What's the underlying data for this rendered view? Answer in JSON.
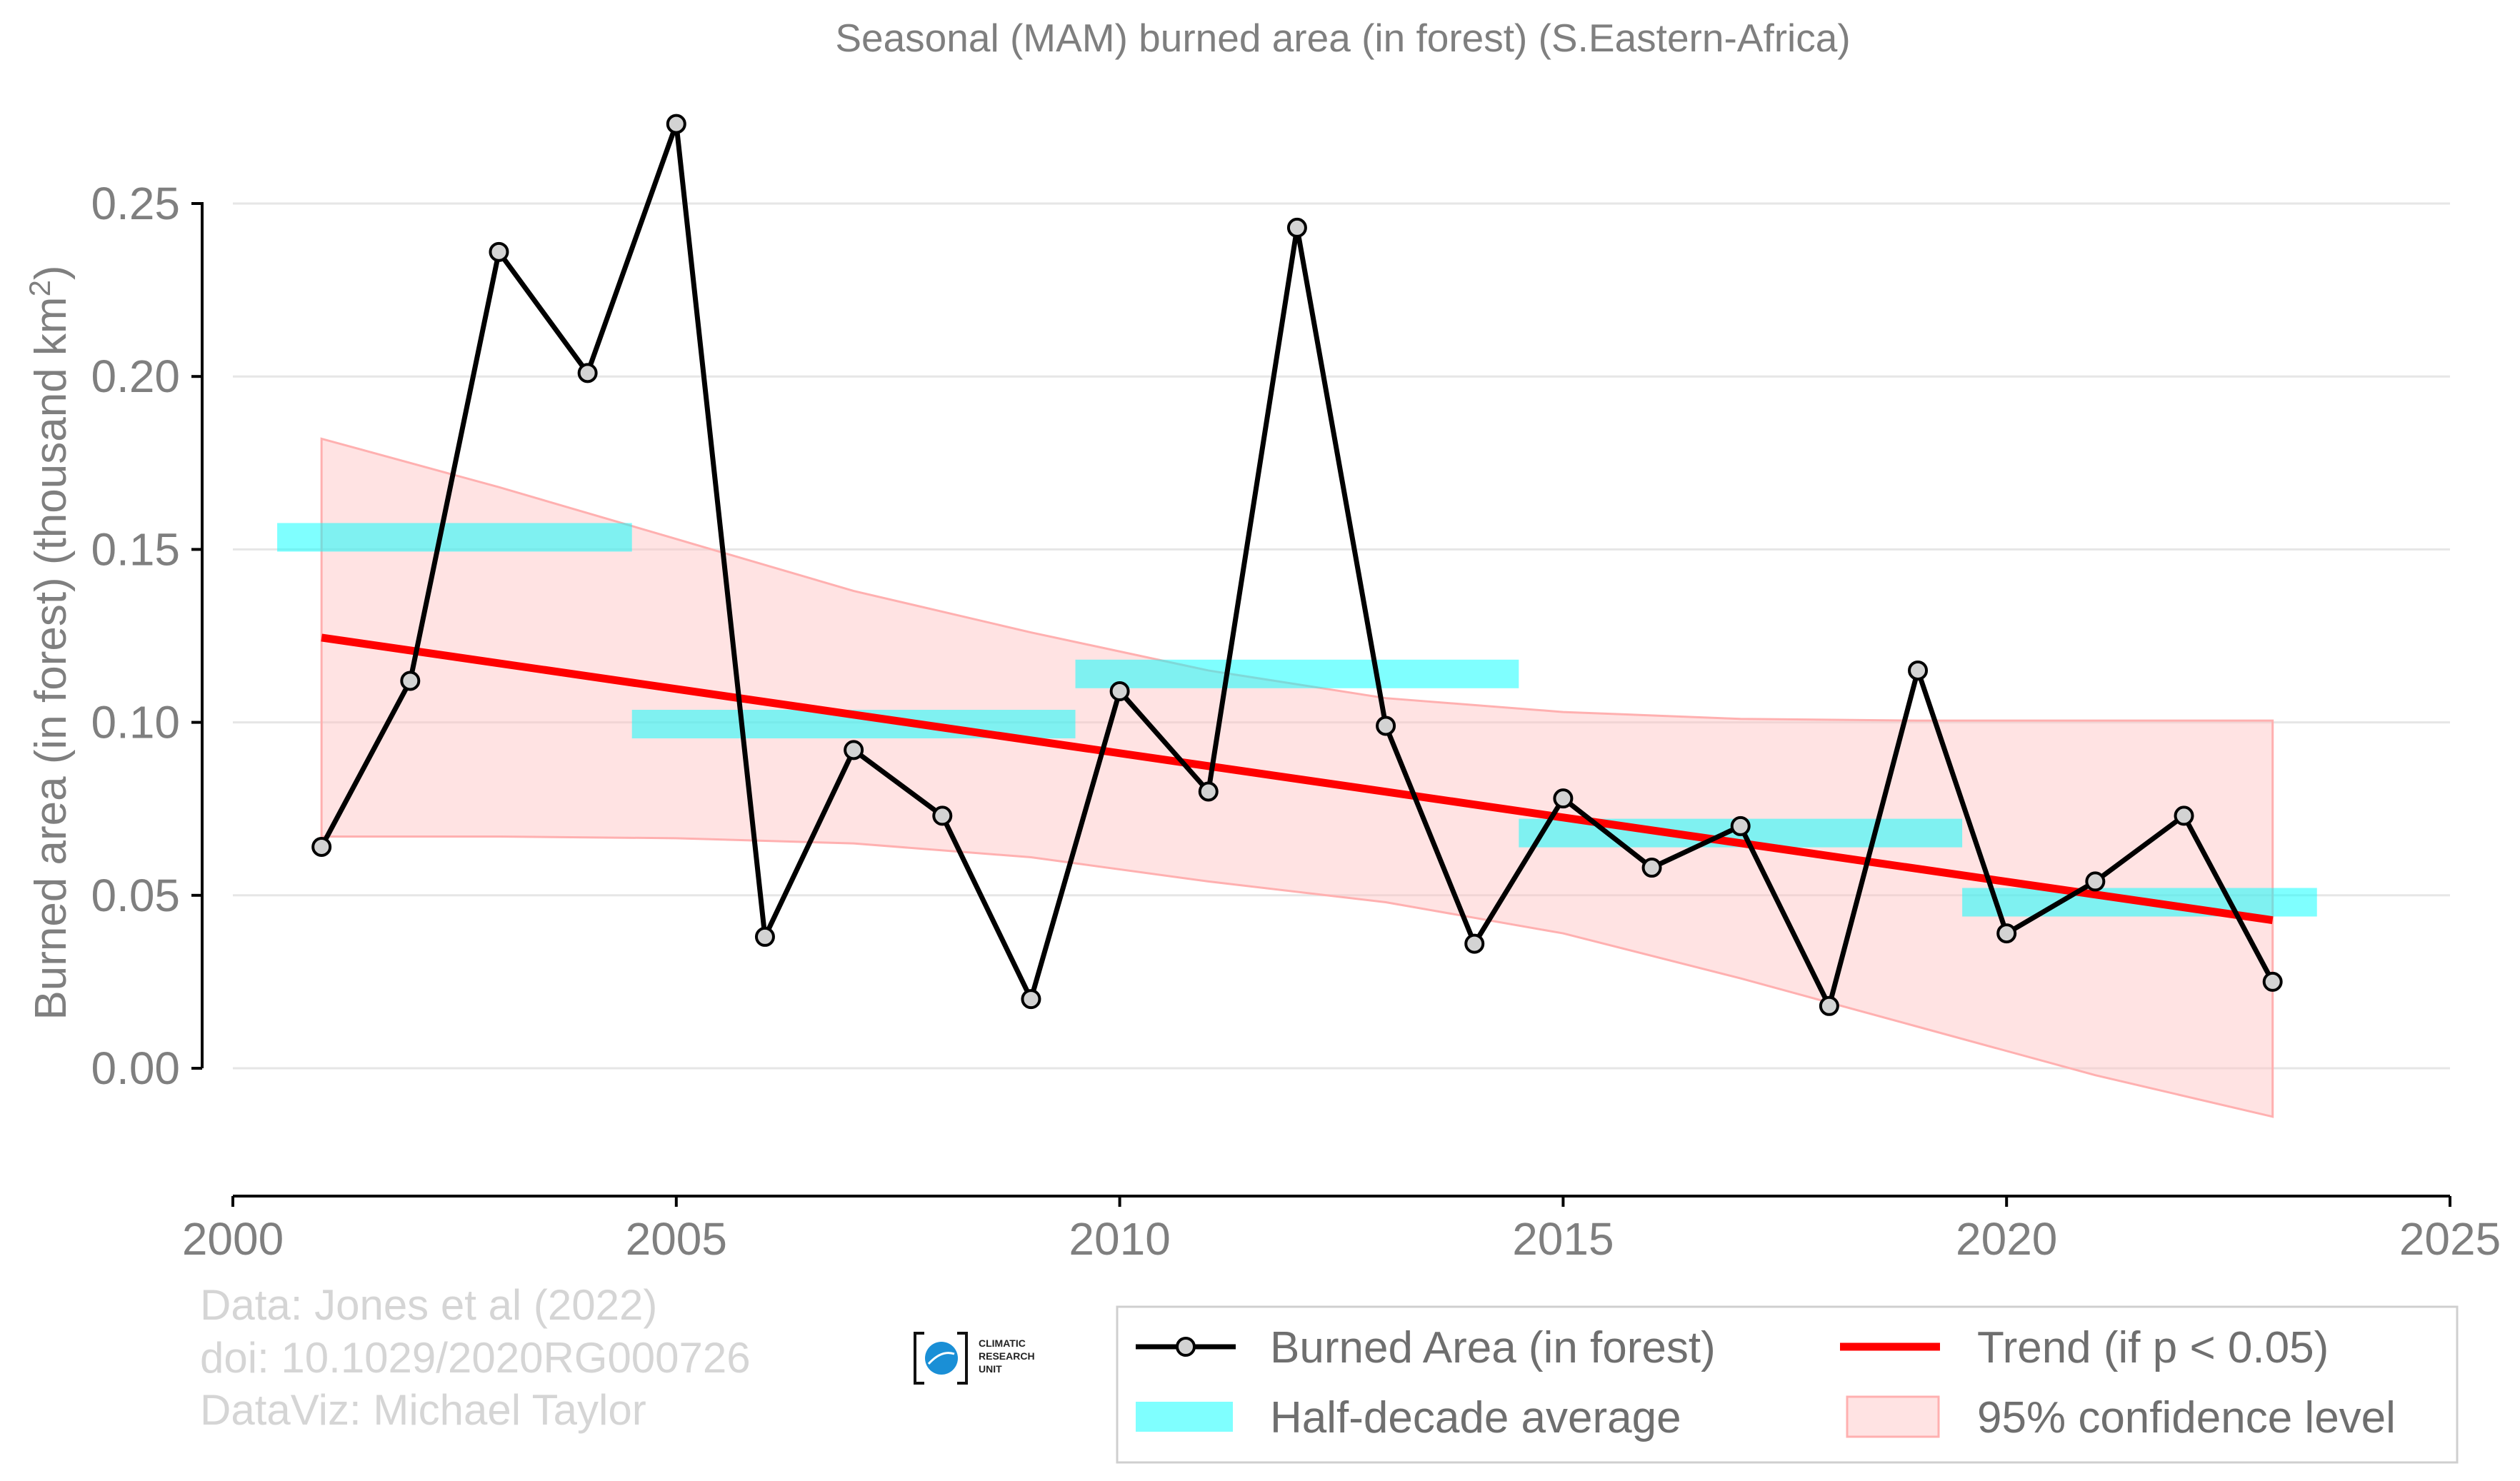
{
  "chart_data": {
    "type": "line",
    "title": "Seasonal (MAM) burned area (in forest) (S.Eastern-Africa)",
    "ylabel": "Burned area (in forest) (thousand km",
    "ylabel_sup": "2",
    "ylabel_end": ")",
    "xlim": [
      2000,
      2025
    ],
    "ylim": [
      -0.037,
      0.29
    ],
    "x_ticks": [
      2000,
      2005,
      2010,
      2015,
      2020,
      2025
    ],
    "x_tick_labels": [
      "2000",
      "2005",
      "2010",
      "2015",
      "2020",
      "2025"
    ],
    "y_ticks": [
      0.0,
      0.05,
      0.1,
      0.15,
      0.2,
      0.25
    ],
    "y_tick_labels": [
      "0.00",
      "0.05",
      "0.10",
      "0.15",
      "0.20",
      "0.25"
    ],
    "grid": true,
    "legend_position": "bottom-right",
    "series": [
      {
        "name": "Burned Area (in forest)",
        "color": "#000000",
        "marker_fill": "#d3d3d3",
        "x": [
          2001,
          2002,
          2003,
          2004,
          2005,
          2006,
          2007,
          2008,
          2009,
          2010,
          2011,
          2012,
          2013,
          2014,
          2015,
          2016,
          2017,
          2018,
          2019,
          2020,
          2021,
          2022,
          2023
        ],
        "y": [
          0.064,
          0.112,
          0.236,
          0.201,
          0.273,
          0.038,
          0.092,
          0.073,
          0.02,
          0.109,
          0.08,
          0.243,
          0.099,
          0.036,
          0.078,
          0.058,
          0.07,
          0.018,
          0.115,
          0.039,
          0.054,
          0.073,
          0.025
        ]
      }
    ],
    "half_decade_average": {
      "name": "Half-decade average",
      "color": "#00ffff",
      "segments": [
        {
          "x0": 2000.5,
          "x1": 2004.5,
          "y": 0.1535
        },
        {
          "x0": 2004.5,
          "x1": 2009.5,
          "y": 0.0995
        },
        {
          "x0": 2009.5,
          "x1": 2014.5,
          "y": 0.114
        },
        {
          "x0": 2014.5,
          "x1": 2019.5,
          "y": 0.068
        },
        {
          "x0": 2019.5,
          "x1": 2023.5,
          "y": 0.048
        }
      ]
    },
    "trend": {
      "name": "Trend (if p < 0.05)",
      "color": "#ff0000",
      "x": [
        2001,
        2023
      ],
      "y": [
        0.1245,
        0.0428
      ]
    },
    "confidence_band": {
      "name": "95% confidence level",
      "color": "#ffc0c0",
      "x": [
        2001,
        2003,
        2005,
        2007,
        2009,
        2011,
        2013,
        2015,
        2017,
        2019,
        2021,
        2023
      ],
      "upper": [
        0.182,
        0.168,
        0.153,
        0.138,
        0.126,
        0.115,
        0.107,
        0.103,
        0.101,
        0.1005,
        0.1005,
        0.1005
      ],
      "lower": [
        0.067,
        0.067,
        0.0665,
        0.065,
        0.061,
        0.054,
        0.048,
        0.039,
        0.026,
        0.012,
        -0.002,
        -0.014
      ]
    }
  },
  "credits": {
    "line1": "Data: Jones et al (2022)",
    "line2": "doi: 10.1029/2020RG000726",
    "line3": "DataViz: Michael Taylor"
  },
  "logo": {
    "line1": "CLIMATIC",
    "line2": "RESEARCH",
    "line3": "UNIT",
    "color": "#1a8fd6"
  }
}
